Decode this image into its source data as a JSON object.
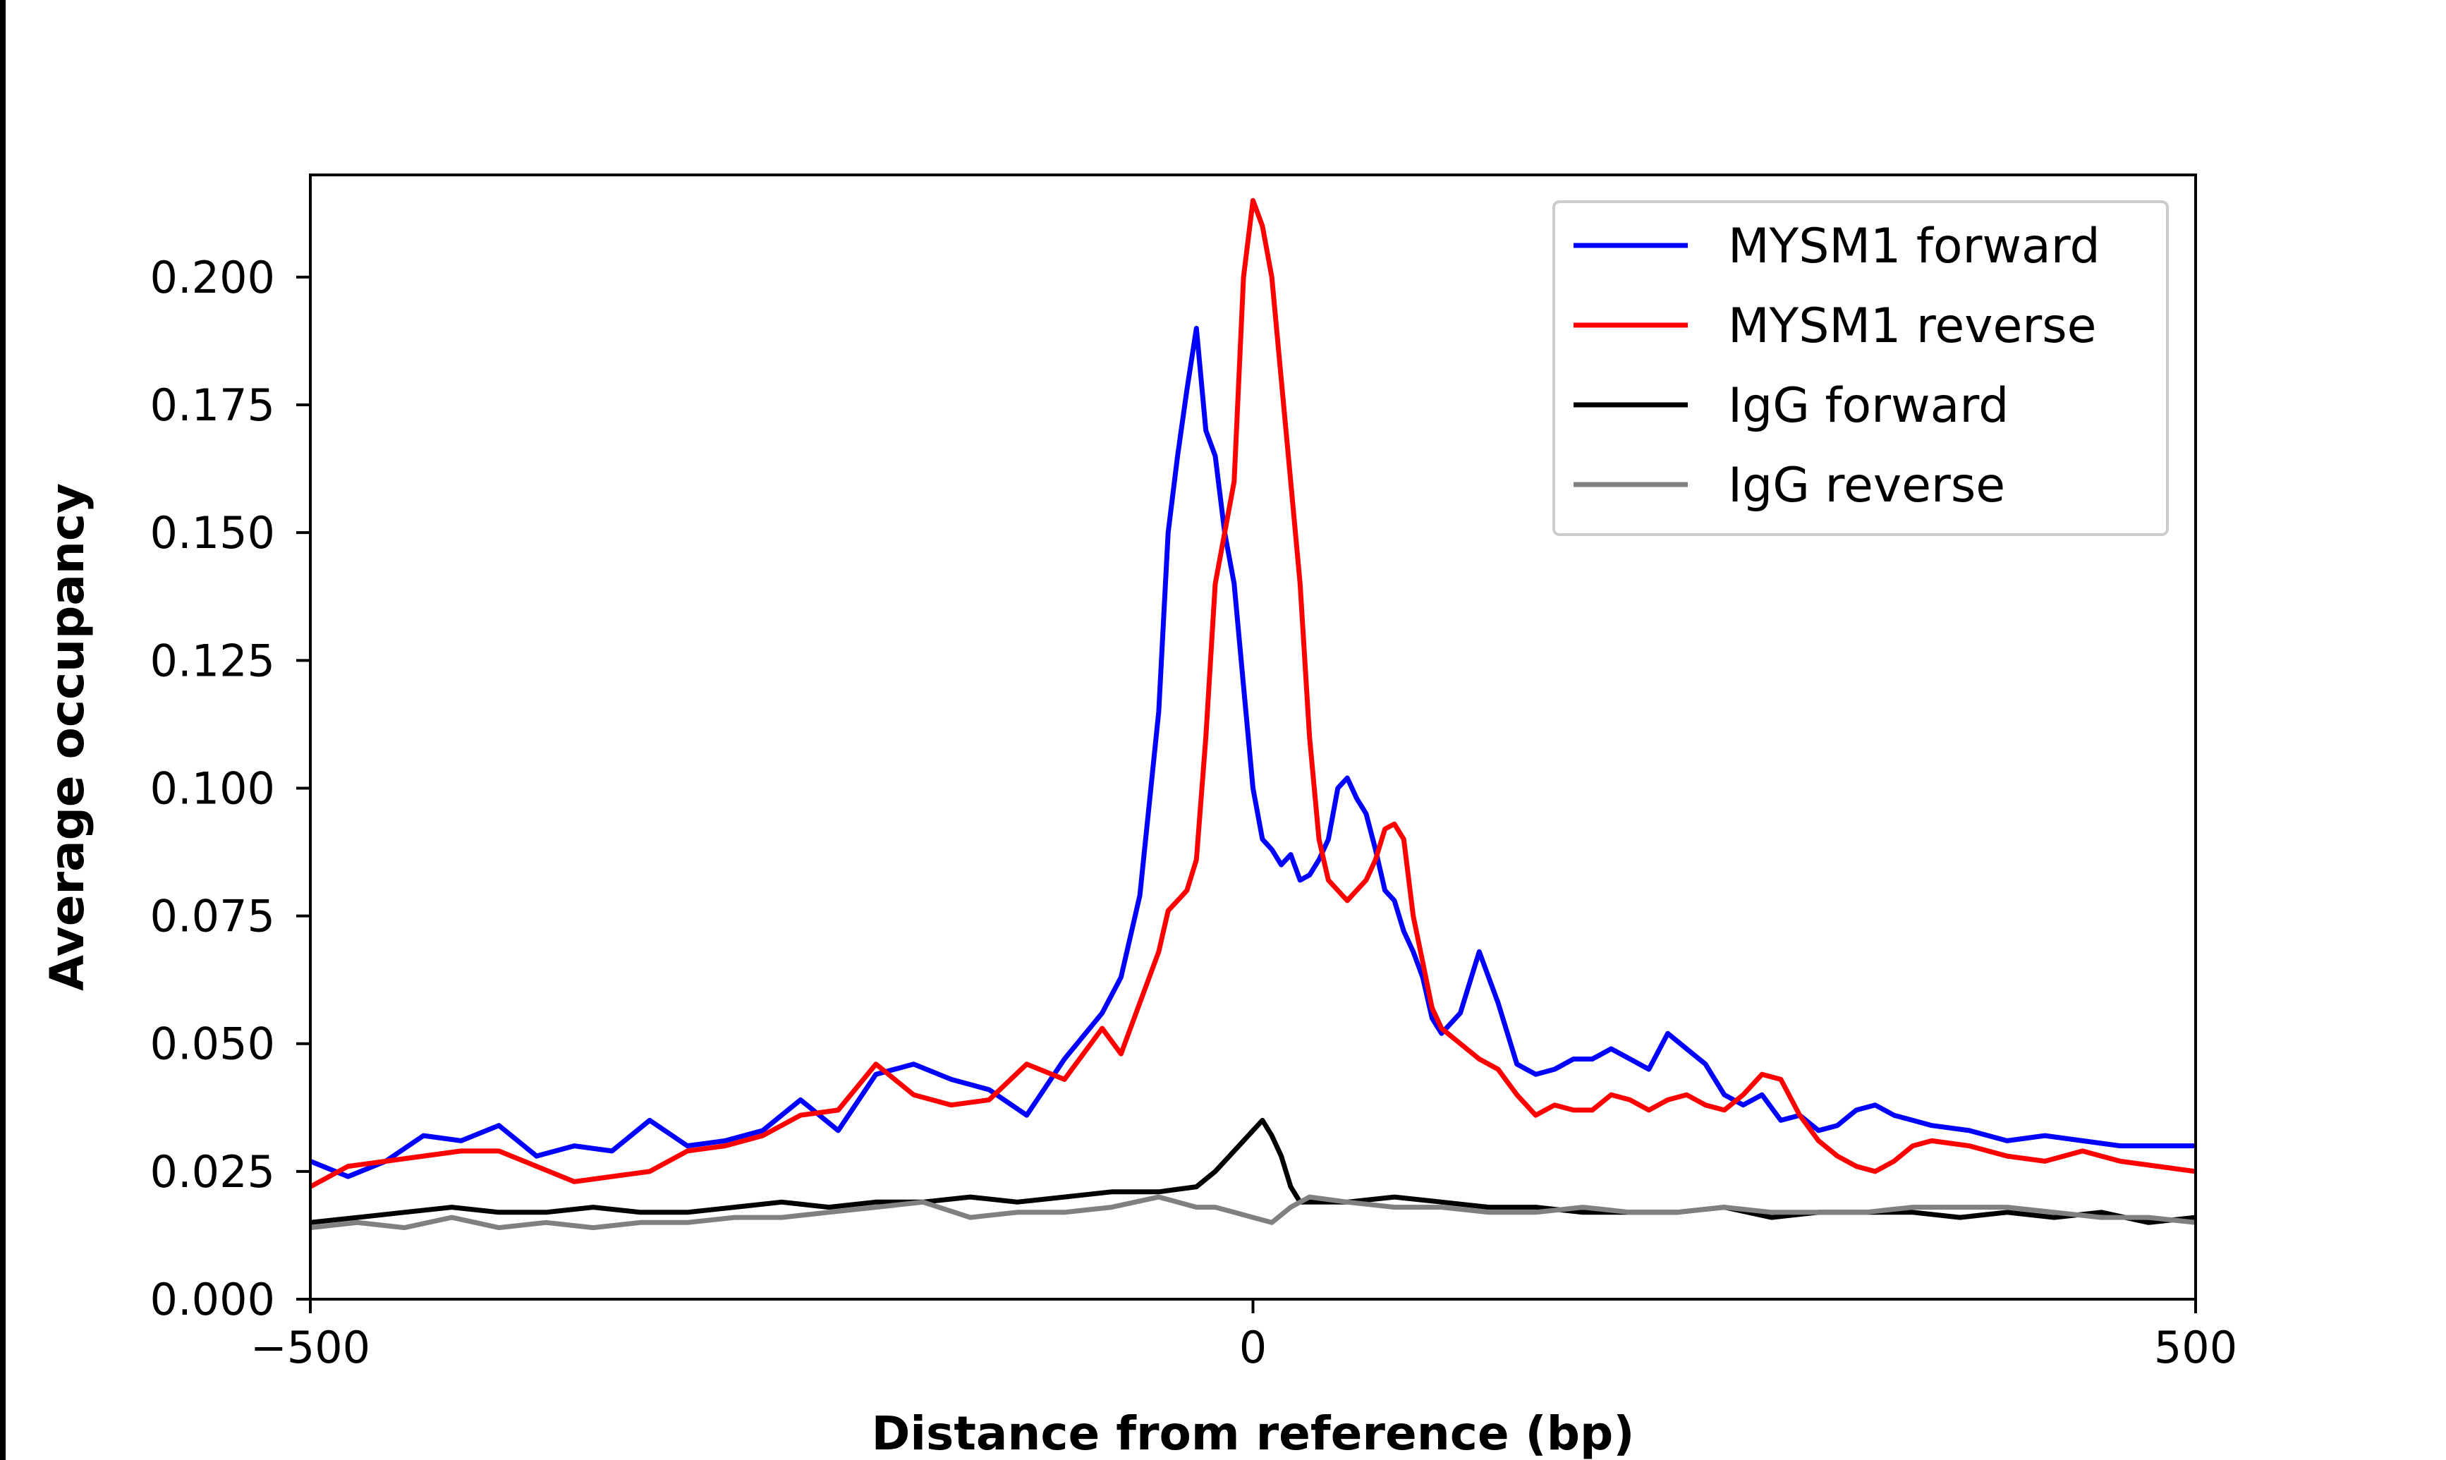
{
  "chart_data": {
    "type": "line",
    "title": "",
    "xlabel": "Distance from reference (bp)",
    "ylabel": "Average occupancy",
    "xlim": [
      -500,
      500
    ],
    "ylim": [
      0,
      0.22
    ],
    "x_ticks": [
      -500,
      0,
      500
    ],
    "x_tick_labels": [
      "−500",
      "0",
      "500"
    ],
    "y_ticks": [
      0,
      0.025,
      0.05,
      0.075,
      0.1,
      0.125,
      0.15,
      0.175,
      0.2
    ],
    "y_tick_labels": [
      "0.000",
      "0.025",
      "0.050",
      "0.075",
      "0.100",
      "0.125",
      "0.150",
      "0.175",
      "0.200"
    ],
    "grid": false,
    "legend_position": "top-right",
    "series": [
      {
        "name": "MYSM1 forward",
        "color": "#0000ff",
        "x": [
          -500,
          -480,
          -460,
          -440,
          -420,
          -400,
          -380,
          -360,
          -340,
          -320,
          -300,
          -280,
          -260,
          -240,
          -220,
          -200,
          -180,
          -160,
          -140,
          -120,
          -100,
          -80,
          -70,
          -60,
          -50,
          -45,
          -40,
          -35,
          -30,
          -25,
          -20,
          -15,
          -10,
          -5,
          0,
          5,
          10,
          15,
          20,
          25,
          30,
          35,
          40,
          45,
          50,
          55,
          60,
          65,
          70,
          75,
          80,
          85,
          90,
          95,
          100,
          110,
          120,
          130,
          140,
          150,
          160,
          170,
          180,
          190,
          200,
          210,
          220,
          230,
          240,
          250,
          260,
          270,
          280,
          290,
          300,
          310,
          320,
          330,
          340,
          350,
          360,
          380,
          400,
          420,
          440,
          460,
          480,
          500
        ],
        "y": [
          0.027,
          0.024,
          0.027,
          0.032,
          0.031,
          0.034,
          0.028,
          0.03,
          0.029,
          0.035,
          0.03,
          0.031,
          0.033,
          0.039,
          0.033,
          0.044,
          0.046,
          0.043,
          0.041,
          0.036,
          0.047,
          0.056,
          0.063,
          0.079,
          0.115,
          0.15,
          0.165,
          0.178,
          0.19,
          0.17,
          0.165,
          0.15,
          0.14,
          0.12,
          0.1,
          0.09,
          0.088,
          0.085,
          0.087,
          0.082,
          0.083,
          0.086,
          0.09,
          0.1,
          0.102,
          0.098,
          0.095,
          0.088,
          0.08,
          0.078,
          0.072,
          0.068,
          0.063,
          0.055,
          0.052,
          0.056,
          0.068,
          0.058,
          0.046,
          0.044,
          0.045,
          0.047,
          0.047,
          0.049,
          0.047,
          0.045,
          0.052,
          0.049,
          0.046,
          0.04,
          0.038,
          0.04,
          0.035,
          0.036,
          0.033,
          0.034,
          0.037,
          0.038,
          0.036,
          0.035,
          0.034,
          0.033,
          0.031,
          0.032,
          0.031,
          0.03,
          0.03,
          0.03
        ]
      },
      {
        "name": "MYSM1 reverse",
        "color": "#ff0000",
        "x": [
          -500,
          -480,
          -460,
          -440,
          -420,
          -400,
          -380,
          -360,
          -340,
          -320,
          -300,
          -280,
          -260,
          -240,
          -220,
          -200,
          -180,
          -160,
          -140,
          -120,
          -100,
          -80,
          -70,
          -60,
          -50,
          -45,
          -40,
          -35,
          -30,
          -25,
          -20,
          -15,
          -10,
          -5,
          0,
          5,
          10,
          15,
          20,
          25,
          30,
          35,
          40,
          45,
          50,
          55,
          60,
          65,
          70,
          75,
          80,
          85,
          90,
          95,
          100,
          110,
          120,
          130,
          140,
          150,
          160,
          170,
          180,
          190,
          200,
          210,
          220,
          230,
          240,
          250,
          260,
          270,
          280,
          290,
          300,
          310,
          320,
          330,
          340,
          350,
          360,
          380,
          400,
          420,
          440,
          460,
          480,
          500
        ],
        "y": [
          0.022,
          0.026,
          0.027,
          0.028,
          0.029,
          0.029,
          0.026,
          0.023,
          0.024,
          0.025,
          0.029,
          0.03,
          0.032,
          0.036,
          0.037,
          0.046,
          0.04,
          0.038,
          0.039,
          0.046,
          0.043,
          0.053,
          0.048,
          0.058,
          0.068,
          0.076,
          0.078,
          0.08,
          0.086,
          0.11,
          0.14,
          0.15,
          0.16,
          0.2,
          0.215,
          0.21,
          0.2,
          0.18,
          0.16,
          0.14,
          0.11,
          0.09,
          0.082,
          0.08,
          0.078,
          0.08,
          0.082,
          0.086,
          0.092,
          0.093,
          0.09,
          0.075,
          0.066,
          0.057,
          0.053,
          0.05,
          0.047,
          0.045,
          0.04,
          0.036,
          0.038,
          0.037,
          0.037,
          0.04,
          0.039,
          0.037,
          0.039,
          0.04,
          0.038,
          0.037,
          0.04,
          0.044,
          0.043,
          0.036,
          0.031,
          0.028,
          0.026,
          0.025,
          0.027,
          0.03,
          0.031,
          0.03,
          0.028,
          0.027,
          0.029,
          0.027,
          0.026,
          0.025
        ]
      },
      {
        "name": "IgG forward",
        "color": "#000000",
        "x": [
          -500,
          -475,
          -450,
          -425,
          -400,
          -375,
          -350,
          -325,
          -300,
          -275,
          -250,
          -225,
          -200,
          -175,
          -150,
          -125,
          -100,
          -75,
          -50,
          -30,
          -20,
          -10,
          0,
          5,
          10,
          15,
          20,
          25,
          30,
          50,
          75,
          100,
          125,
          150,
          175,
          200,
          225,
          250,
          275,
          300,
          325,
          350,
          375,
          400,
          425,
          450,
          475,
          500
        ],
        "y": [
          0.015,
          0.016,
          0.017,
          0.018,
          0.017,
          0.017,
          0.018,
          0.017,
          0.017,
          0.018,
          0.019,
          0.018,
          0.019,
          0.019,
          0.02,
          0.019,
          0.02,
          0.021,
          0.021,
          0.022,
          0.025,
          0.029,
          0.033,
          0.035,
          0.032,
          0.028,
          0.022,
          0.019,
          0.019,
          0.019,
          0.02,
          0.019,
          0.018,
          0.018,
          0.017,
          0.017,
          0.017,
          0.018,
          0.016,
          0.017,
          0.017,
          0.017,
          0.016,
          0.017,
          0.016,
          0.017,
          0.015,
          0.016
        ]
      },
      {
        "name": "IgG reverse",
        "color": "#808080",
        "x": [
          -500,
          -475,
          -450,
          -425,
          -400,
          -375,
          -350,
          -325,
          -300,
          -275,
          -250,
          -225,
          -200,
          -175,
          -150,
          -125,
          -100,
          -75,
          -50,
          -30,
          -20,
          -10,
          0,
          10,
          20,
          30,
          50,
          75,
          100,
          125,
          150,
          175,
          200,
          225,
          250,
          275,
          300,
          325,
          350,
          375,
          400,
          425,
          450,
          475,
          500
        ],
        "y": [
          0.014,
          0.015,
          0.014,
          0.016,
          0.014,
          0.015,
          0.014,
          0.015,
          0.015,
          0.016,
          0.016,
          0.017,
          0.018,
          0.019,
          0.016,
          0.017,
          0.017,
          0.018,
          0.02,
          0.018,
          0.018,
          0.017,
          0.016,
          0.015,
          0.018,
          0.02,
          0.019,
          0.018,
          0.018,
          0.017,
          0.017,
          0.018,
          0.017,
          0.017,
          0.018,
          0.017,
          0.017,
          0.017,
          0.018,
          0.018,
          0.018,
          0.017,
          0.016,
          0.016,
          0.015
        ]
      }
    ]
  }
}
